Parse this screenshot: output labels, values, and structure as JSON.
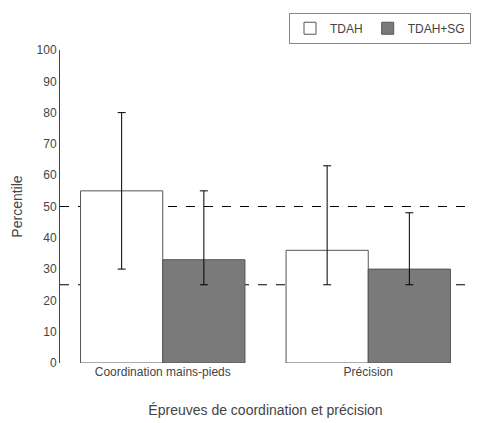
{
  "chart_data": {
    "type": "bar",
    "categories": [
      "Coordination mains-pieds",
      "Précision"
    ],
    "series": [
      {
        "name": "TDAH",
        "color": "#ffffff",
        "values": [
          55,
          36
        ],
        "error_upper": [
          80,
          63
        ],
        "error_lower": [
          30,
          25
        ]
      },
      {
        "name": "TDAH+SG",
        "color": "#7a7a7a",
        "values": [
          33,
          30
        ],
        "error_upper": [
          55,
          48
        ],
        "error_lower": [
          25,
          25
        ]
      }
    ],
    "reference_lines": [
      25,
      50
    ],
    "xlabel": "Épreuves de coordination et précision",
    "ylabel": "Percentile",
    "ylim": [
      0,
      100
    ],
    "yticks": [
      0,
      10,
      20,
      30,
      40,
      50,
      60,
      70,
      80,
      90,
      100
    ],
    "grid": false,
    "legend": "upper right"
  }
}
